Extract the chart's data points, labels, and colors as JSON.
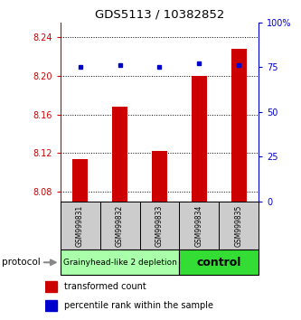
{
  "title": "GDS5113 / 10382852",
  "samples": [
    "GSM999831",
    "GSM999832",
    "GSM999833",
    "GSM999834",
    "GSM999835"
  ],
  "bar_values": [
    8.114,
    8.168,
    8.122,
    8.2,
    8.228
  ],
  "dot_values": [
    75,
    76,
    75,
    77,
    76
  ],
  "ylim_left": [
    8.07,
    8.255
  ],
  "ylim_right": [
    0,
    100
  ],
  "yticks_left": [
    8.08,
    8.12,
    8.16,
    8.2,
    8.24
  ],
  "yticks_right": [
    0,
    25,
    50,
    75,
    100
  ],
  "bar_color": "#cc0000",
  "dot_color": "#0000cc",
  "bar_bottom": 8.07,
  "groups": [
    {
      "label": "Grainyhead-like 2 depletion",
      "indices": [
        0,
        1,
        2
      ],
      "color": "#aaffaa",
      "text_size": 6.5,
      "text_weight": "normal"
    },
    {
      "label": "control",
      "indices": [
        3,
        4
      ],
      "color": "#33dd33",
      "text_size": 9,
      "text_weight": "bold"
    }
  ],
  "protocol_text": "protocol",
  "legend_items": [
    {
      "color": "#cc0000",
      "label": "transformed count"
    },
    {
      "color": "#0000cc",
      "label": "percentile rank within the sample"
    }
  ],
  "grid_color": "#000000",
  "tick_color_left": "#cc0000",
  "tick_color_right": "#0000cc",
  "sample_box_color": "#cccccc",
  "figsize": [
    3.33,
    3.54
  ],
  "dpi": 100
}
